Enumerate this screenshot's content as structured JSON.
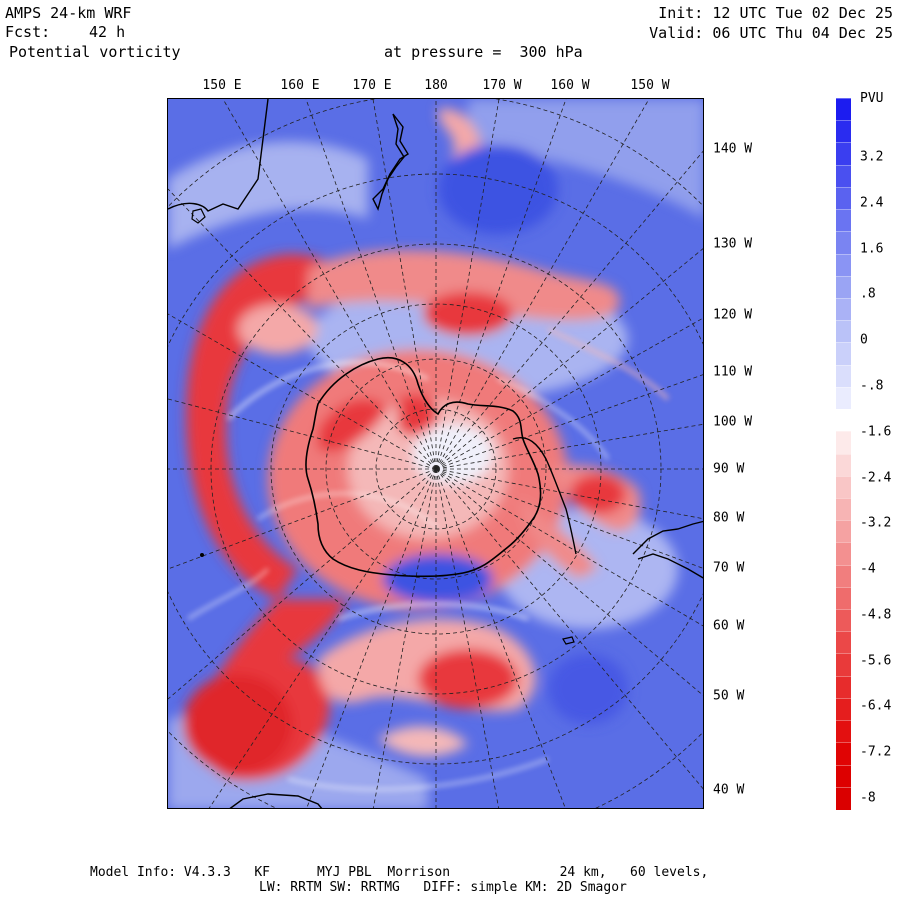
{
  "header": {
    "model_title": "AMPS 24-km WRF",
    "forecast_label": "Fcst:",
    "forecast_value": "42 h",
    "field_name": "Potential vorticity",
    "level_text": "at pressure =  300 hPa",
    "init_text": "Init: 12 UTC Tue 02 Dec 25",
    "valid_text": "Valid: 06 UTC Thu 04 Dec 25"
  },
  "map": {
    "top_longitude_labels": [
      "150 E",
      "160 E",
      "170 E",
      "180",
      "170 W",
      "160 W",
      "150 W"
    ],
    "right_longitude_labels": [
      "140 W",
      "130 W",
      "120 W",
      "110 W",
      "100 W",
      "90 W",
      "80 W",
      "70 W",
      "60 W",
      "50 W",
      "40 W"
    ],
    "colors": {
      "background": "#5a6ee6",
      "positive_strong": "#3040e8",
      "negative_strong": "#e8383c",
      "negative_light": "#f4a8a8",
      "neutral": "#f2f2fa",
      "coastline": "#000000",
      "grid": "#222222"
    }
  },
  "colorbar": {
    "unit": "PVU",
    "labels": [
      "3.2",
      "2.4",
      "1.6",
      ".8",
      "0",
      "-.8",
      "-1.6",
      "-2.4",
      "-3.2",
      "-4",
      "-4.8",
      "-5.6",
      "-6.4",
      "-7.2",
      "-8"
    ],
    "segment_colors": [
      "#1c1cf0",
      "#2a2cf0",
      "#3a3ef0",
      "#4a50f0",
      "#5a62f0",
      "#6a74f2",
      "#7a84f2",
      "#8a94f4",
      "#9aa4f4",
      "#aab2f6",
      "#bac2f8",
      "#cad0fa",
      "#dadefc",
      "#eaecfe",
      "#ffffff",
      "#fdeaea",
      "#fbd8d8",
      "#f9c6c6",
      "#f7b4b4",
      "#f5a2a2",
      "#f39090",
      "#f17e7e",
      "#ef6c6c",
      "#ed5a5a",
      "#eb4848",
      "#e93a3a",
      "#e72c2c",
      "#e51e1e",
      "#e31010",
      "#e00404",
      "#dd0000",
      "#da0000"
    ]
  },
  "footer": {
    "line1": "Model Info: V4.3.3   KF      MYJ PBL  Morrison              24 km,   60 levels,",
    "line2": "LW: RRTM SW: RRTMG   DIFF: simple KM: 2D Smagor"
  }
}
